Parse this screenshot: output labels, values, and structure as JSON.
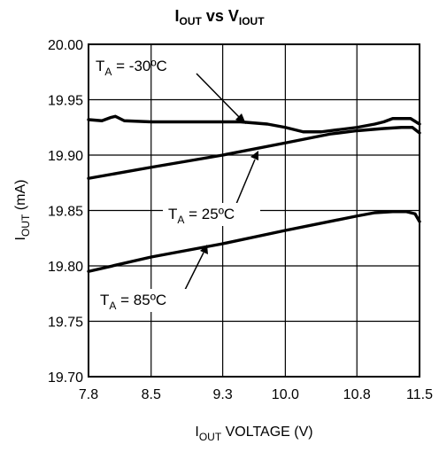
{
  "chart_data": {
    "type": "line",
    "title": {
      "main": "I",
      "sub1": "OUT",
      "mid": " vs V",
      "sub2": "IOUT"
    },
    "xlabel": {
      "main": "I",
      "sub": "OUT",
      "rest": " VOLTAGE (V)"
    },
    "ylabel": {
      "main": "I",
      "sub": "OUT",
      "rest": " (mA)"
    },
    "xlim": [
      7.8,
      11.5
    ],
    "ylim": [
      19.7,
      20.0
    ],
    "x_ticks": [
      7.8,
      8.5,
      9.3,
      10.0,
      10.8,
      11.5
    ],
    "x_tick_labels": [
      "7.8",
      "8.5",
      "9.3",
      "10.0",
      "10.8",
      "11.5"
    ],
    "y_ticks": [
      19.7,
      19.75,
      19.8,
      19.85,
      19.9,
      19.95,
      20.0
    ],
    "y_tick_labels": [
      "19.70",
      "19.75",
      "19.80",
      "19.85",
      "19.90",
      "19.95",
      "20.00"
    ],
    "grid": true,
    "series": [
      {
        "name": "TA = -30°C",
        "x": [
          7.8,
          7.95,
          8.05,
          8.1,
          8.2,
          8.5,
          9.0,
          9.5,
          9.8,
          10.0,
          10.2,
          10.4,
          10.6,
          10.8,
          11.0,
          11.1,
          11.2,
          11.3,
          11.4,
          11.5
        ],
        "y": [
          19.932,
          19.931,
          19.934,
          19.935,
          19.931,
          19.93,
          19.93,
          19.93,
          19.928,
          19.925,
          19.921,
          19.921,
          19.923,
          19.925,
          19.928,
          19.93,
          19.933,
          19.933,
          19.933,
          19.928
        ]
      },
      {
        "name": "TA = 25°C",
        "x": [
          7.8,
          8.5,
          9.3,
          10.0,
          10.5,
          10.8,
          11.1,
          11.3,
          11.42,
          11.5
        ],
        "y": [
          19.879,
          19.889,
          19.9,
          19.911,
          19.919,
          19.922,
          19.924,
          19.925,
          19.925,
          19.92
        ]
      },
      {
        "name": "TA = 85°C",
        "x": [
          7.8,
          8.5,
          9.3,
          10.0,
          10.8,
          11.0,
          11.2,
          11.35,
          11.45,
          11.5
        ],
        "y": [
          19.795,
          19.808,
          19.82,
          19.832,
          19.845,
          19.848,
          19.849,
          19.849,
          19.847,
          19.84
        ]
      }
    ],
    "annotations": [
      {
        "label": "T",
        "sub": "A",
        "rest": " = -30ºC",
        "target_x": 9.7,
        "target_y": 19.93
      },
      {
        "label": "T",
        "sub": "A",
        "rest": " = 25ºC",
        "target_x": 9.7,
        "target_y": 19.905
      },
      {
        "label": "T",
        "sub": "A",
        "rest": " = 85ºC",
        "target_x": 9.0,
        "target_y": 19.816
      }
    ]
  }
}
